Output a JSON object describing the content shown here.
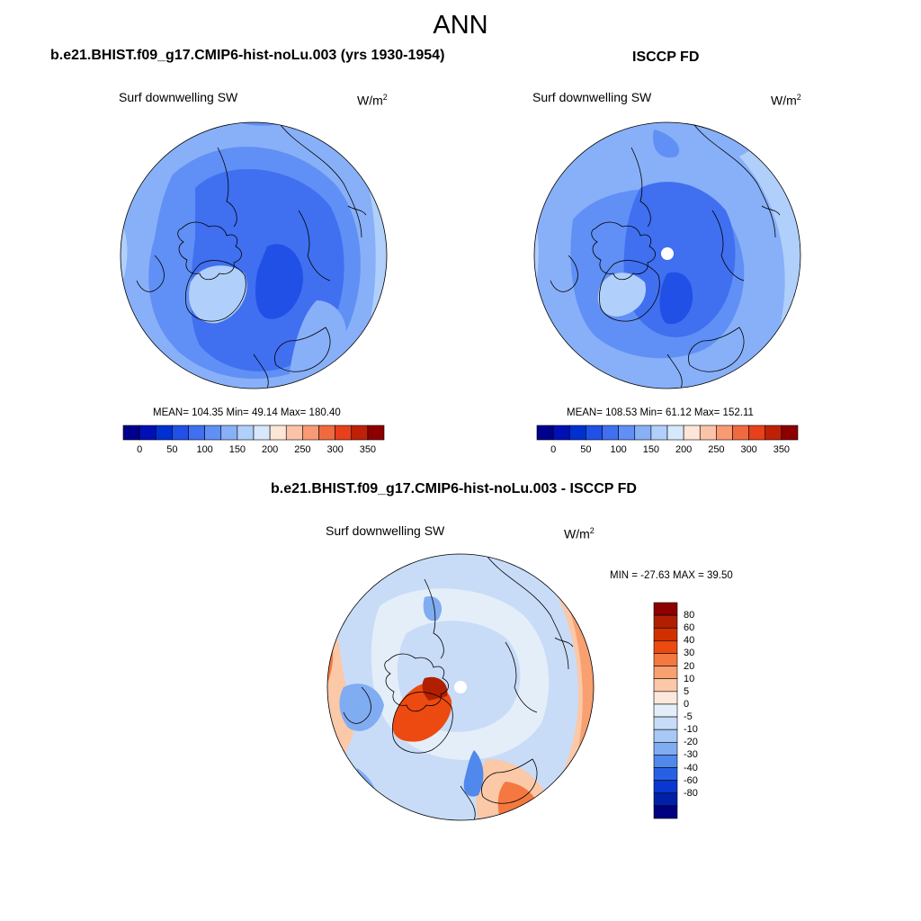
{
  "title": "ANN",
  "colors": {
    "abs_scale": [
      "#00008c",
      "#0010b4",
      "#0030d2",
      "#2050e6",
      "#4070f0",
      "#6090f5",
      "#88b0f8",
      "#b0cffa",
      "#d8e8fc",
      "#fde6d8",
      "#fbc4a8",
      "#f89a74",
      "#f06a40",
      "#e8401a",
      "#c02008",
      "#8c0000"
    ],
    "diff_scale": [
      "#8c0000",
      "#b02000",
      "#d03000",
      "#ec4a10",
      "#f47840",
      "#f8a070",
      "#fbc8a8",
      "#fce8dc",
      "#e4eef9",
      "#c8dcf8",
      "#a8c8f6",
      "#80acf2",
      "#5088ec",
      "#2860e4",
      "#0838d0",
      "#0020a8",
      "#000080"
    ],
    "land_line": "#000000"
  },
  "panels": {
    "left": {
      "title": "b.e21.BHIST.f09_g17.CMIP6-hist-noLu.003 (yrs 1930-1954)",
      "variable": "Surf downwelling SW",
      "units": "W/m",
      "units_exp": "2",
      "stats": "MEAN= 104.35  Min=  49.14  Max= 180.40",
      "colorbar_labels": [
        "0",
        "50",
        "100",
        "150",
        "200",
        "250",
        "300",
        "350"
      ]
    },
    "right": {
      "title": "ISCCP FD",
      "variable": "Surf downwelling SW",
      "units": "W/m",
      "units_exp": "2",
      "stats": "MEAN= 108.53  Min=  61.12  Max= 152.11",
      "colorbar_labels": [
        "0",
        "50",
        "100",
        "150",
        "200",
        "250",
        "300",
        "350"
      ]
    },
    "diff": {
      "title": "b.e21.BHIST.f09_g17.CMIP6-hist-noLu.003 - ISCCP FD",
      "variable": "Surf downwelling SW",
      "units": "W/m",
      "units_exp": "2",
      "stats": "MIN = -27.63 MAX =  39.50",
      "colorbar_labels": [
        "80",
        "60",
        "40",
        "30",
        "20",
        "10",
        "5",
        "0",
        "-5",
        "-10",
        "-20",
        "-30",
        "-40",
        "-60",
        "-80"
      ]
    }
  }
}
